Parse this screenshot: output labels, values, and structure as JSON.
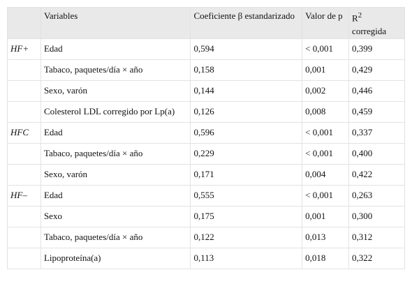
{
  "table": {
    "header": [
      "Variables",
      "Coeficiente β estandarizado",
      "Valor de p"
    ],
    "r2_header": {
      "base": "R",
      "sup": "2",
      "rest": "corregida"
    },
    "groups": [
      {
        "label": "HF+",
        "rows": [
          [
            "Edad",
            "0,594",
            "< 0,001",
            "0,399"
          ],
          [
            "Tabaco, paquetes/día × año",
            "0,158",
            "0,001",
            "0,429"
          ],
          [
            "Sexo, varón",
            "0,144",
            "0,002",
            "0,446"
          ],
          [
            "Colesterol LDL corregido por Lp(a)",
            "0,126",
            "0,008",
            "0,459"
          ]
        ]
      },
      {
        "label": "HFC",
        "rows": [
          [
            "Edad",
            "0,596",
            "< 0,001",
            "0,337"
          ],
          [
            "Tabaco, paquetes/día × año",
            "0,229",
            "< 0,001",
            "0,400"
          ],
          [
            "Sexo, varón",
            "0,171",
            "0,004",
            "0,422"
          ]
        ]
      },
      {
        "label": "HF–",
        "rows": [
          [
            "Edad",
            "0,555",
            "< 0,001",
            "0,263"
          ],
          [
            "Sexo",
            "0,175",
            "0,001",
            "0,300"
          ],
          [
            "Tabaco, paquetes/día × año",
            "0,122",
            "0,013",
            "0,312"
          ],
          [
            "Lipoproteína(a)",
            "0,113",
            "0,018",
            "0,322"
          ]
        ]
      }
    ]
  }
}
